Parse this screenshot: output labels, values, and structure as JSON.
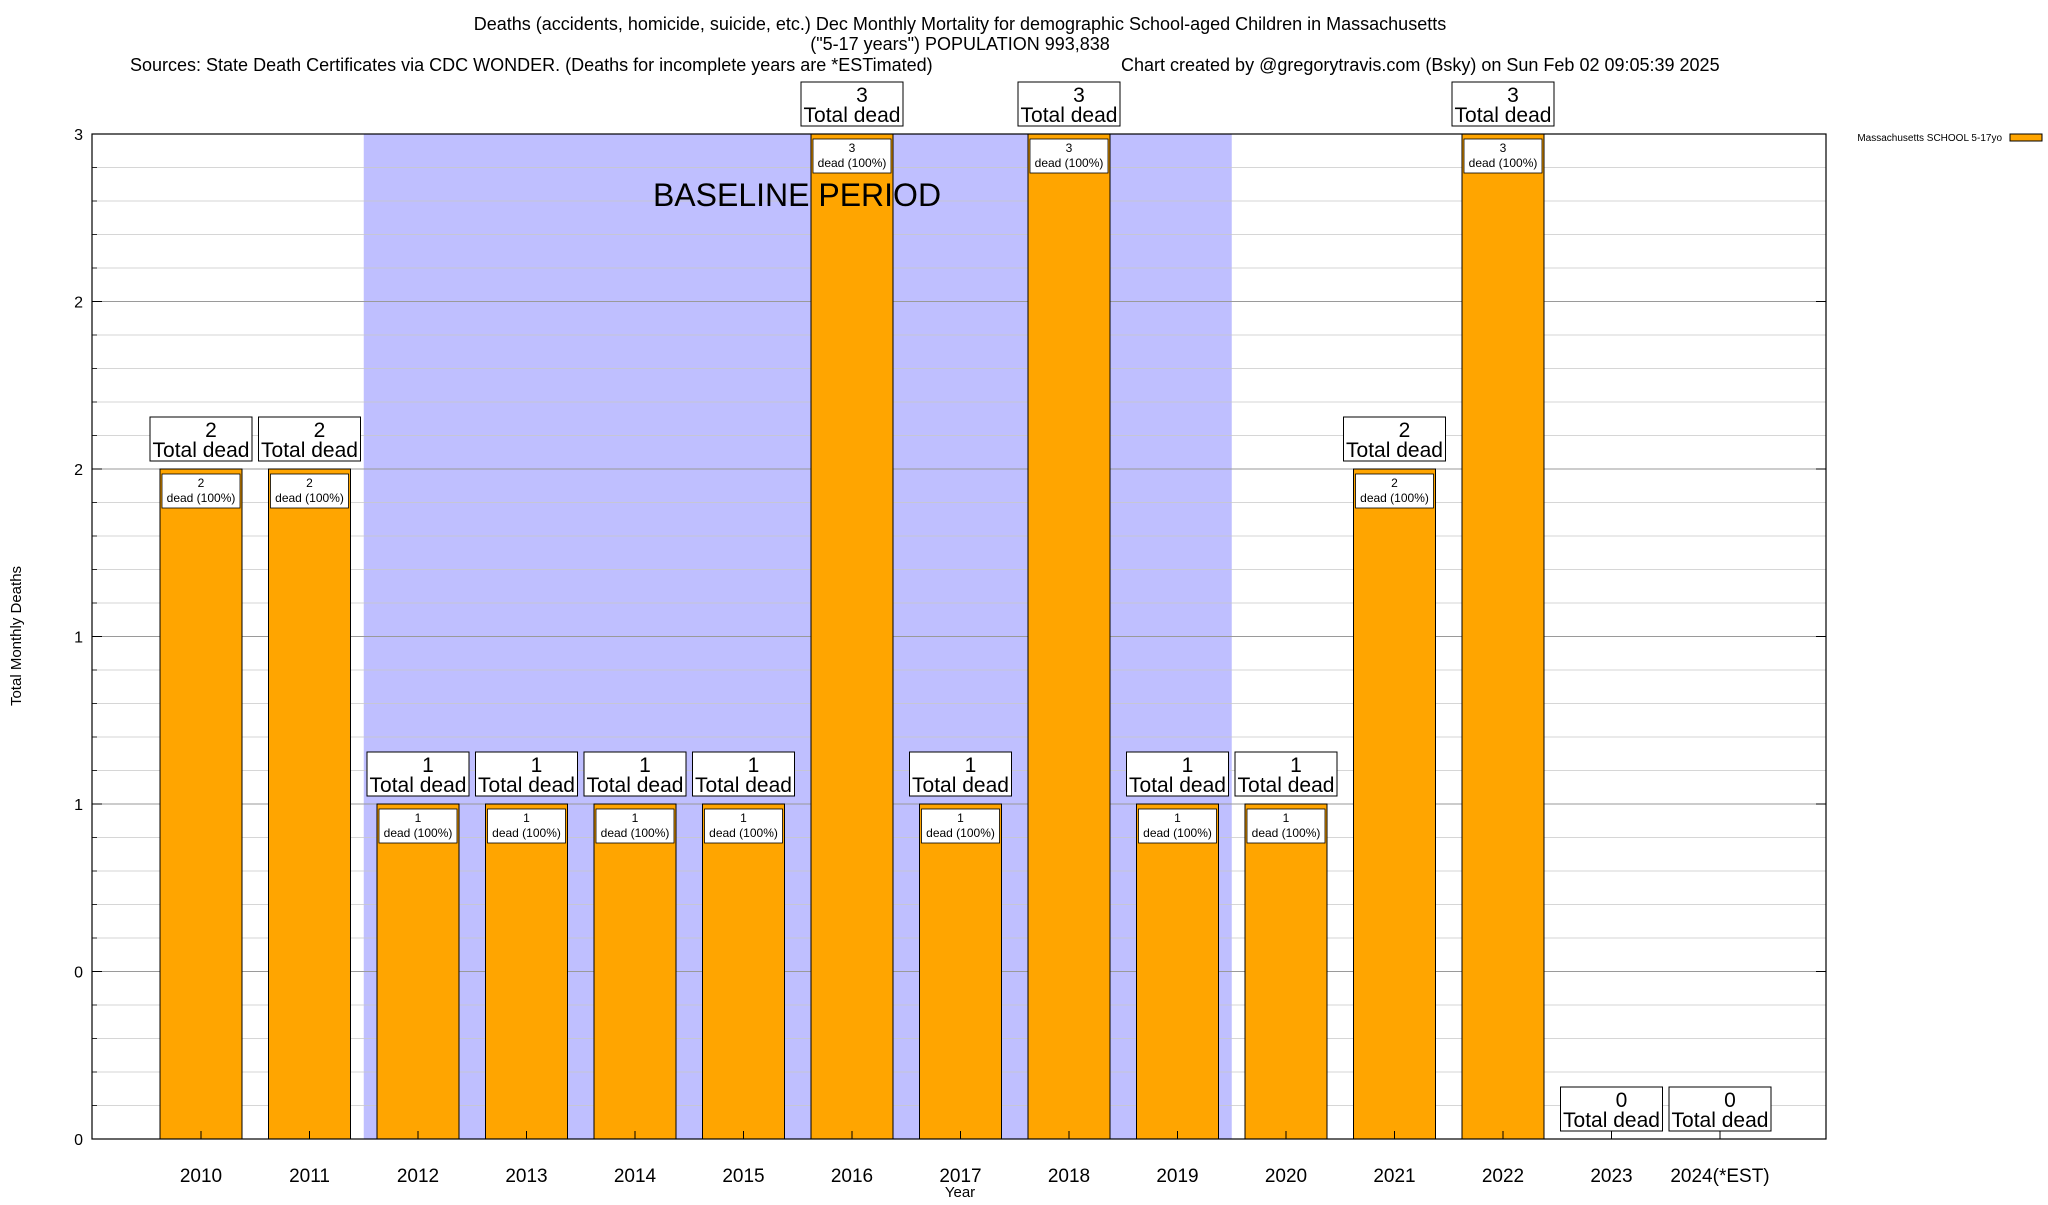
{
  "header": {
    "title_line1": "Deaths (accidents, homicide, suicide, etc.) Dec Monthly Mortality for demographic School-aged Children in Massachusetts",
    "title_line2": "(\"5-17 years\") POPULATION 993,838",
    "sources": "Sources: State Death Certificates via CDC WONDER. (Deaths for incomplete years are *ESTimated)",
    "credit": "Chart created by @gregorytravis.com (Bsky) on Sun Feb 02 09:05:39 2025"
  },
  "chart_data": {
    "type": "bar",
    "title": "Deaths (accidents, homicide, suicide, etc.) Dec Monthly Mortality for demographic School-aged Children in Massachusetts",
    "subtitle": "(\"5-17 years\") POPULATION 993,838",
    "xlabel": "Year",
    "ylabel": "Total Monthly Deaths",
    "ylim": [
      0,
      3
    ],
    "yticks": [
      0,
      0.5,
      1,
      1.5,
      2,
      2.5,
      3
    ],
    "ytick_labels": [
      "0",
      "0",
      "1",
      "1",
      "2",
      "2",
      "3"
    ],
    "categories": [
      "2010",
      "2011",
      "2012",
      "2013",
      "2014",
      "2015",
      "2016",
      "2017",
      "2018",
      "2019",
      "2020",
      "2021",
      "2022",
      "2023",
      "2024(*EST)"
    ],
    "values": [
      2,
      2,
      1,
      1,
      1,
      1,
      3,
      1,
      3,
      1,
      1,
      2,
      3,
      0,
      0
    ],
    "total_label_suffix": "Total dead",
    "inner_label_suffix": "dead (100%)",
    "baseline": {
      "label": "BASELINE PERIOD",
      "from_category": "2012",
      "to_category": "2019",
      "color": "#bfbfff"
    },
    "legend": {
      "entries": [
        "Massachusetts SCHOOL 5-17yo"
      ],
      "placement": "top-right"
    },
    "colors": {
      "bar": "#ffa500",
      "band": "#bfbfff",
      "grid": "#c8c8c8"
    }
  }
}
